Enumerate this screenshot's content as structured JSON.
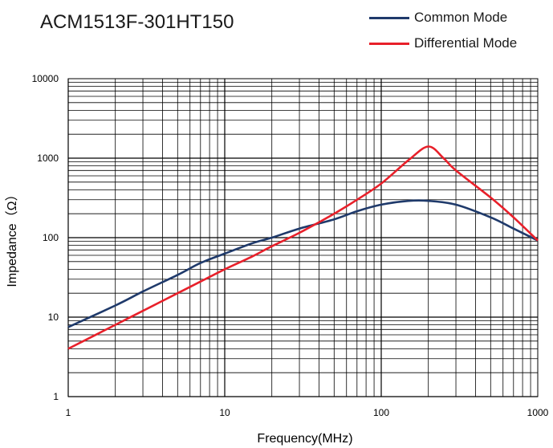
{
  "chart_data": {
    "type": "line",
    "title": "ACM1513F-301HT150",
    "xlabel": "Frequency(MHz)",
    "ylabel": "Impedance（Ω）",
    "xscale": "log",
    "yscale": "log",
    "xlim": [
      1,
      1000
    ],
    "ylim": [
      1,
      10000
    ],
    "x_tick_labels": [
      "1",
      "10",
      "100",
      "1000"
    ],
    "y_tick_labels": [
      "1",
      "10",
      "100",
      "1000",
      "10000"
    ],
    "grid": true,
    "legend_position": "top-right",
    "series": [
      {
        "name": "Common Mode",
        "color": "#1f3a6b",
        "x": [
          1,
          2,
          3,
          5,
          7,
          10,
          15,
          20,
          30,
          50,
          70,
          100,
          150,
          200,
          300,
          500,
          700,
          1000
        ],
        "y": [
          7.5,
          14,
          21,
          34,
          48,
          63,
          85,
          100,
          130,
          170,
          215,
          260,
          290,
          290,
          260,
          180,
          130,
          92
        ]
      },
      {
        "name": "Differential Mode",
        "color": "#e8202a",
        "x": [
          1,
          2,
          3,
          5,
          7,
          10,
          15,
          20,
          30,
          50,
          70,
          100,
          150,
          200,
          250,
          300,
          500,
          700,
          1000
        ],
        "y": [
          4,
          8,
          12,
          20,
          28,
          40,
          58,
          78,
          115,
          200,
          300,
          480,
          950,
          1400,
          1000,
          700,
          320,
          180,
          92
        ]
      }
    ]
  }
}
